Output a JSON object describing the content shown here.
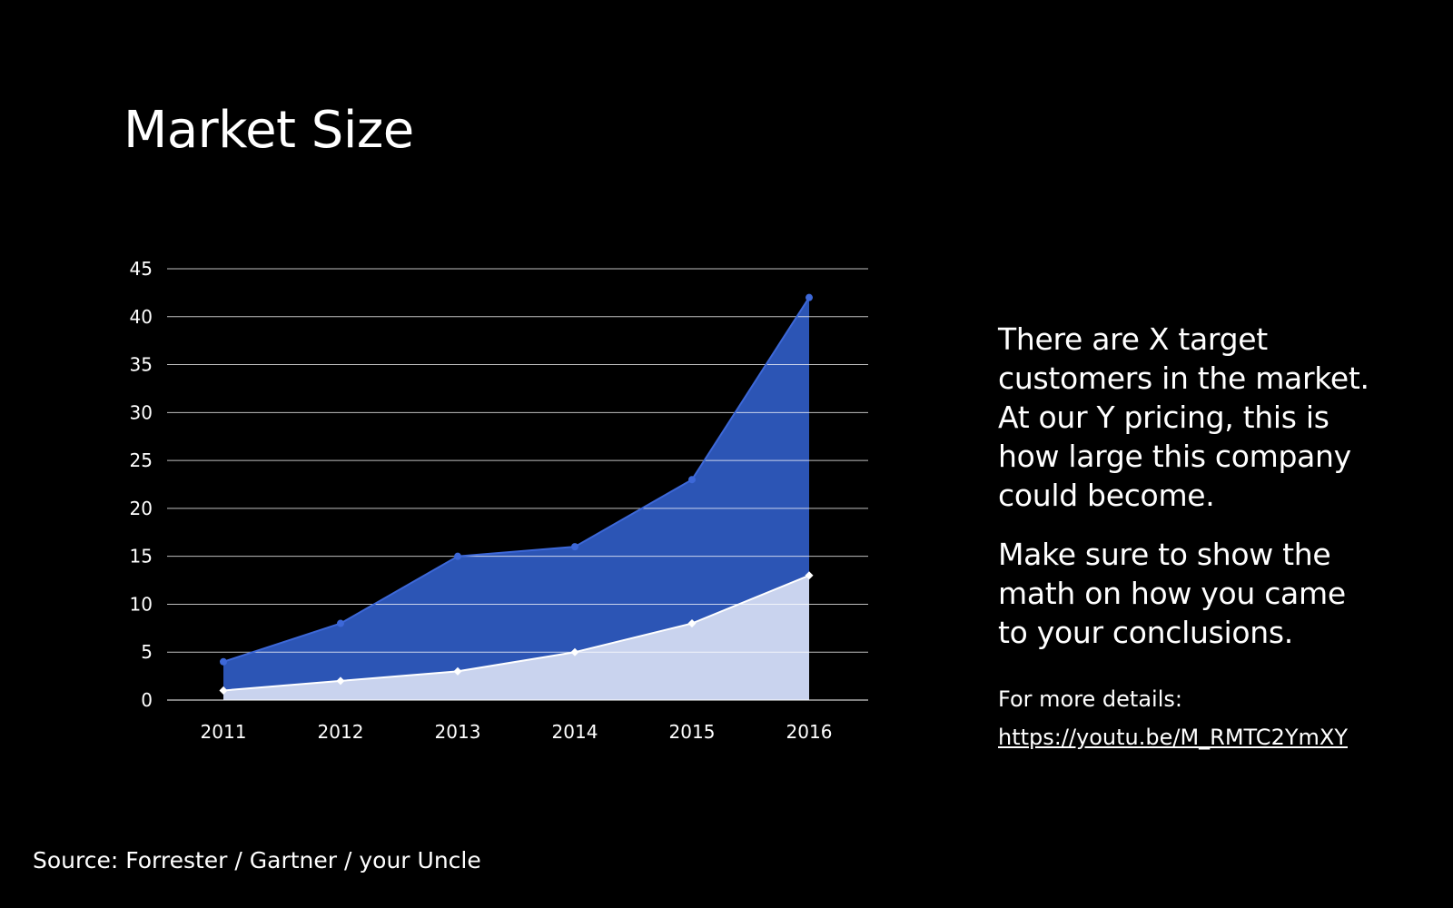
{
  "slide": {
    "title": "Market Size",
    "paragraph_1": "There are X target customers in the market. At our Y pricing, this is how large this company could become.",
    "paragraph_2": "Make sure to show the math on how you came to your conclusions.",
    "details_label": "For more details:",
    "details_link": "https://youtu.be/M_RMTC2YmXY",
    "source": "Source: Forrester / Gartner / your Uncle"
  },
  "chart_data": {
    "type": "area",
    "title": "",
    "xlabel": "",
    "ylabel": "",
    "categories": [
      "2011",
      "2012",
      "2013",
      "2014",
      "2015",
      "2016"
    ],
    "ylim": [
      0,
      45
    ],
    "yticks": [
      0,
      5,
      10,
      15,
      20,
      25,
      30,
      35,
      40,
      45
    ],
    "grid": true,
    "legend": "none",
    "series": [
      {
        "values": [
          4,
          8,
          15,
          16,
          23,
          42
        ],
        "color": "#2C55B5",
        "line_color": "#3D68D8"
      },
      {
        "values": [
          1,
          2,
          3,
          5,
          8,
          13
        ],
        "color": "#C9D3EE",
        "line_color": "#FFFFFF"
      }
    ],
    "background": "#000000",
    "text_color": "#FFFFFF"
  }
}
